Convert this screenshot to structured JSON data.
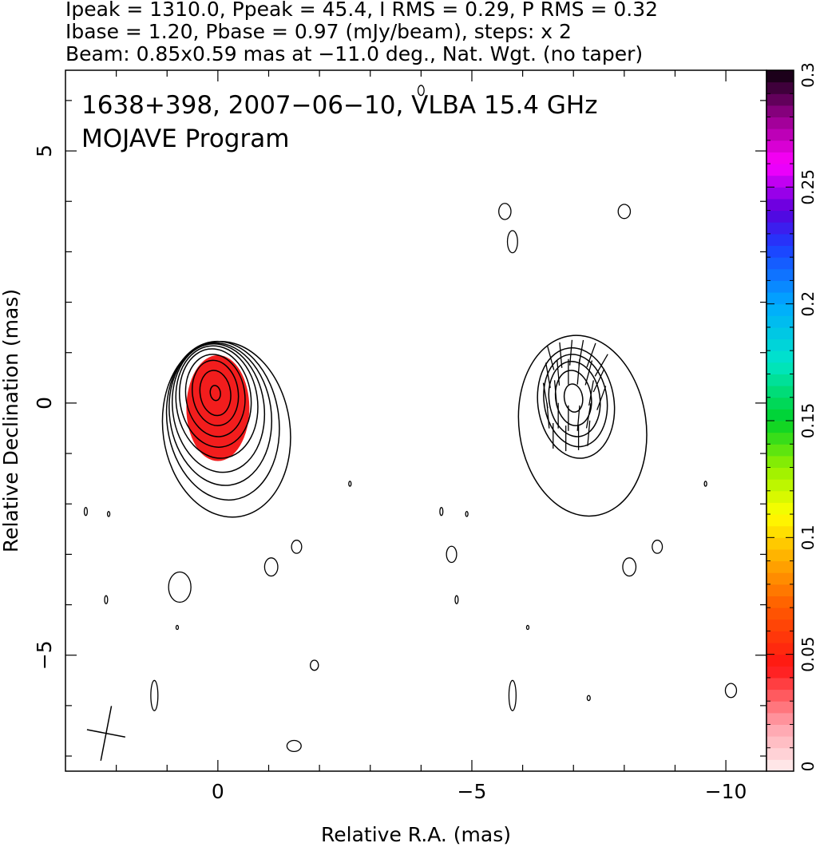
{
  "header": {
    "line1": "Ipeak = 1310.0, Ppeak = 45.4, I RMS = 0.29, P RMS = 0.32",
    "line2": "Ibase = 1.20, Pbase = 0.97 (mJy/beam), steps: x 2",
    "line3": "Beam: 0.85x0.59 mas at −11.0 deg., Nat. Wgt. (no taper)"
  },
  "chart_data": {
    "type": "heatmap",
    "annotation_line1": "1638+398, 2007−06−10, VLBA 15.4 GHz",
    "annotation_line2": "MOJAVE Program",
    "xlabel": "Relative R.A. (mas)",
    "ylabel": "Relative Declination (mas)",
    "xlim": [
      3,
      -10.8
    ],
    "ylim": [
      -7.3,
      6.6
    ],
    "x_ticks": [
      {
        "value": 0,
        "label": "0"
      },
      {
        "value": -5,
        "label": "−5"
      },
      {
        "value": -10,
        "label": "−10"
      }
    ],
    "y_ticks": [
      {
        "value": 5,
        "label": "5"
      },
      {
        "value": 0,
        "label": "0"
      },
      {
        "value": -5,
        "label": "−5"
      }
    ],
    "colorbar": {
      "min": 0,
      "max": 0.3,
      "ticks": [
        {
          "value": 0,
          "label": "0"
        },
        {
          "value": 0.05,
          "label": "0.05"
        },
        {
          "value": 0.1,
          "label": "0.1"
        },
        {
          "value": 0.15,
          "label": "0.15"
        },
        {
          "value": 0.2,
          "label": "0.2"
        },
        {
          "value": 0.25,
          "label": "0.25"
        },
        {
          "value": 0.3,
          "label": "0.3"
        }
      ]
    },
    "panels": [
      {
        "name": "total-intensity-with-fractional-polarization",
        "center_x": 0.05,
        "center_y": 0.2,
        "contours": [
          {
            "rx": 0.1,
            "ry": 0.15,
            "dx": 0.0,
            "dy": 0.0
          },
          {
            "rx": 0.3,
            "ry": 0.45,
            "dx": 0.0,
            "dy": 0.0
          },
          {
            "rx": 0.45,
            "ry": 0.65,
            "dx": 0.0,
            "dy": 0.0
          },
          {
            "rx": 0.58,
            "ry": 0.82,
            "dx": 0.0,
            "dy": -0.05
          },
          {
            "rx": 0.7,
            "ry": 0.98,
            "dx": 0.0,
            "dy": -0.1
          },
          {
            "rx": 0.8,
            "ry": 1.12,
            "dx": -0.03,
            "dy": -0.18
          },
          {
            "rx": 0.9,
            "ry": 1.28,
            "dx": -0.06,
            "dy": -0.3
          },
          {
            "rx": 1.0,
            "ry": 1.42,
            "dx": -0.1,
            "dy": -0.42
          },
          {
            "rx": 1.1,
            "ry": 1.58,
            "dx": -0.15,
            "dy": -0.55
          },
          {
            "rx": 1.25,
            "ry": 1.75,
            "dx": -0.22,
            "dy": -0.72
          }
        ],
        "fill": {
          "rx": 0.62,
          "ry": 1.05,
          "dx": -0.05,
          "dy": -0.3,
          "value": 0.05
        }
      },
      {
        "name": "polarized-intensity-with-evpa",
        "center_x": -7.0,
        "center_y": 0.1,
        "contours": [
          {
            "rx": 0.18,
            "ry": 0.28,
            "dx": 0.0,
            "dy": 0.0
          },
          {
            "rx": 0.35,
            "ry": 0.55,
            "dx": 0.0,
            "dy": 0.0
          },
          {
            "rx": 0.5,
            "ry": 0.75,
            "dx": -0.02,
            "dy": -0.02
          },
          {
            "rx": 0.62,
            "ry": 0.92,
            "dx": -0.04,
            "dy": -0.05
          },
          {
            "rx": 0.75,
            "ry": 1.1,
            "dx": -0.05,
            "dy": -0.1
          },
          {
            "rx": 1.25,
            "ry": 1.8,
            "dx": -0.18,
            "dy": -0.55
          }
        ]
      }
    ],
    "evpa_vectors": [
      {
        "x": -6.55,
        "y": 0.9,
        "angle": 15
      },
      {
        "x": -6.75,
        "y": 0.95,
        "angle": 5
      },
      {
        "x": -6.95,
        "y": 1.0,
        "angle": -5
      },
      {
        "x": -7.15,
        "y": 1.0,
        "angle": -10
      },
      {
        "x": -7.35,
        "y": 0.95,
        "angle": -20
      },
      {
        "x": -7.55,
        "y": 0.75,
        "angle": -30
      },
      {
        "x": -6.5,
        "y": 0.55,
        "angle": 10
      },
      {
        "x": -6.7,
        "y": 0.6,
        "angle": 5
      },
      {
        "x": -6.9,
        "y": 0.62,
        "angle": 0
      },
      {
        "x": -7.1,
        "y": 0.62,
        "angle": -5
      },
      {
        "x": -7.3,
        "y": 0.6,
        "angle": -15
      },
      {
        "x": -7.5,
        "y": 0.45,
        "angle": -25
      },
      {
        "x": -6.45,
        "y": 0.15,
        "angle": 10
      },
      {
        "x": -6.65,
        "y": 0.2,
        "angle": 5
      },
      {
        "x": -7.35,
        "y": 0.2,
        "angle": -10
      },
      {
        "x": -7.55,
        "y": 0.1,
        "angle": -20
      },
      {
        "x": -6.5,
        "y": -0.25,
        "angle": 5
      },
      {
        "x": -6.7,
        "y": -0.25,
        "angle": 0
      },
      {
        "x": -6.9,
        "y": -0.3,
        "angle": 0
      },
      {
        "x": -7.1,
        "y": -0.3,
        "angle": -5
      },
      {
        "x": -7.3,
        "y": -0.25,
        "angle": -10
      },
      {
        "x": -6.6,
        "y": -0.65,
        "angle": 0
      },
      {
        "x": -6.85,
        "y": -0.7,
        "angle": 0
      },
      {
        "x": -7.1,
        "y": -0.68,
        "angle": 0
      },
      {
        "x": -7.3,
        "y": -0.6,
        "angle": -5
      }
    ],
    "noise_contours": [
      {
        "x": -4.0,
        "y": 6.2,
        "rx": 0.06,
        "ry": 0.1
      },
      {
        "x": -5.65,
        "y": 3.8,
        "rx": 0.12,
        "ry": 0.16
      },
      {
        "x": -5.8,
        "y": 3.2,
        "rx": 0.1,
        "ry": 0.22
      },
      {
        "x": -8.0,
        "y": 3.8,
        "rx": 0.12,
        "ry": 0.14
      },
      {
        "x": 2.6,
        "y": -2.15,
        "rx": 0.03,
        "ry": 0.08
      },
      {
        "x": 2.15,
        "y": -2.2,
        "rx": 0.02,
        "ry": 0.05
      },
      {
        "x": -2.6,
        "y": -1.6,
        "rx": 0.02,
        "ry": 0.05
      },
      {
        "x": -4.4,
        "y": -2.15,
        "rx": 0.03,
        "ry": 0.08
      },
      {
        "x": -4.9,
        "y": -2.2,
        "rx": 0.02,
        "ry": 0.05
      },
      {
        "x": -9.6,
        "y": -1.6,
        "rx": 0.02,
        "ry": 0.05
      },
      {
        "x": -1.55,
        "y": -2.85,
        "rx": 0.1,
        "ry": 0.13
      },
      {
        "x": -1.05,
        "y": -3.25,
        "rx": 0.13,
        "ry": 0.18
      },
      {
        "x": -4.6,
        "y": -3.0,
        "rx": 0.1,
        "ry": 0.16
      },
      {
        "x": -8.65,
        "y": -2.85,
        "rx": 0.1,
        "ry": 0.13
      },
      {
        "x": -8.1,
        "y": -3.25,
        "rx": 0.13,
        "ry": 0.18
      },
      {
        "x": 0.75,
        "y": -3.65,
        "rx": 0.22,
        "ry": 0.3
      },
      {
        "x": 2.2,
        "y": -3.9,
        "rx": 0.03,
        "ry": 0.08
      },
      {
        "x": -4.7,
        "y": -3.9,
        "rx": 0.03,
        "ry": 0.08
      },
      {
        "x": 0.8,
        "y": -4.45,
        "rx": 0.02,
        "ry": 0.04
      },
      {
        "x": -6.1,
        "y": -4.45,
        "rx": 0.02,
        "ry": 0.04
      },
      {
        "x": -1.9,
        "y": -5.2,
        "rx": 0.08,
        "ry": 0.1
      },
      {
        "x": 1.25,
        "y": -5.8,
        "rx": 0.07,
        "ry": 0.3
      },
      {
        "x": -5.8,
        "y": -5.8,
        "rx": 0.07,
        "ry": 0.3
      },
      {
        "x": -7.3,
        "y": -5.85,
        "rx": 0.03,
        "ry": 0.05
      },
      {
        "x": -10.1,
        "y": -5.7,
        "rx": 0.11,
        "ry": 0.14
      },
      {
        "x": -1.5,
        "y": -6.8,
        "rx": 0.14,
        "ry": 0.11
      }
    ],
    "beam": {
      "x": 2.2,
      "y": -6.55,
      "major": 0.85,
      "minor": 0.59,
      "pa_deg": -11.0
    }
  }
}
